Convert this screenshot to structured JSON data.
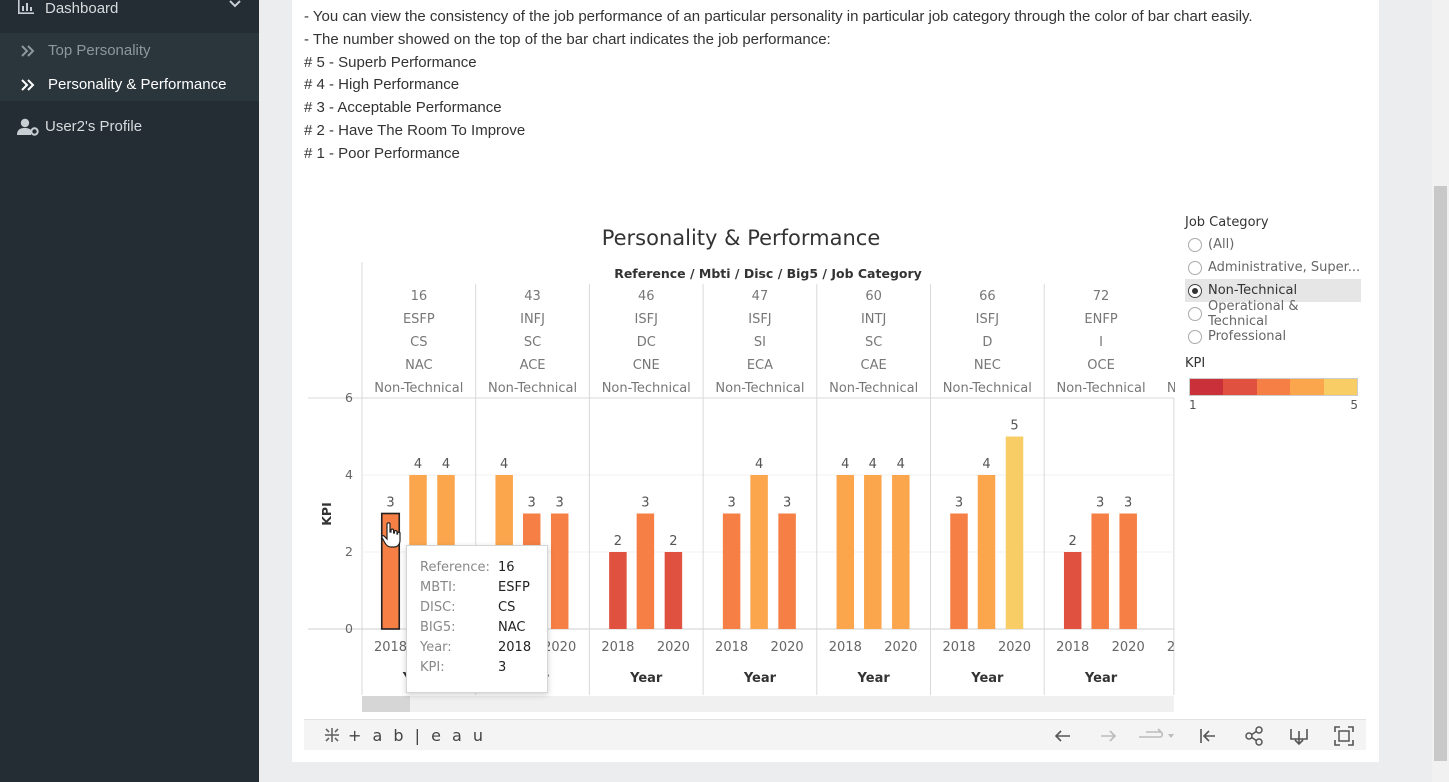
{
  "sidebar": {
    "dashboard_label": "Dashboard",
    "items": [
      {
        "label": "Top Personality"
      },
      {
        "label": "Personality & Performance"
      }
    ],
    "profile_label": "User2's Profile"
  },
  "description": {
    "lines": [
      "- You can view the consistency of the job performance of an particular personality in particular job category through the color of bar chart easily.",
      "- The number showed on the top of the bar chart indicates the job performance:",
      "# 5 - Superb Performance",
      "# 4 - High Performance",
      "# 3 - Acceptable Performance",
      "# 2 - Have The Room To Improve",
      "# 1 - Poor Performance"
    ]
  },
  "filters": {
    "job_category_title": "Job Category",
    "options": [
      "(All)",
      "Administrative, Super...",
      "Non-Technical",
      "Operational & Technical",
      "Professional"
    ],
    "selected": "Non-Technical",
    "kpi_title": "KPI",
    "kpi_min": "1",
    "kpi_max": "5"
  },
  "colors": {
    "kpi_scale": [
      "#c9303a",
      "#e0513f",
      "#f57f45",
      "#fba64d",
      "#f8cd66"
    ],
    "selection_outline": "#222222"
  },
  "chart_data": {
    "type": "bar",
    "title": "Personality & Performance",
    "header_label": "Reference / Mbti / Disc / Big5 / Job Category",
    "ylabel": "KPI",
    "xlabel": "Year",
    "ylim": [
      0,
      6
    ],
    "yticks": [
      "0",
      "2",
      "4",
      "6"
    ],
    "x_tick_first": "2018",
    "x_tick_last": "2020",
    "groups": [
      {
        "reference": "16",
        "mbti": "ESFP",
        "disc": "CS",
        "big5": "NAC",
        "category": "Non-Technical",
        "values": [
          3,
          4,
          4
        ]
      },
      {
        "reference": "43",
        "mbti": "INFJ",
        "disc": "SC",
        "big5": "ACE",
        "category": "Non-Technical",
        "values": [
          4,
          3,
          3
        ]
      },
      {
        "reference": "46",
        "mbti": "ISFJ",
        "disc": "DC",
        "big5": "CNE",
        "category": "Non-Technical",
        "values": [
          2,
          3,
          2
        ]
      },
      {
        "reference": "47",
        "mbti": "ISFJ",
        "disc": "SI",
        "big5": "ECA",
        "category": "Non-Technical",
        "values": [
          3,
          4,
          3
        ]
      },
      {
        "reference": "60",
        "mbti": "INTJ",
        "disc": "SC",
        "big5": "CAE",
        "category": "Non-Technical",
        "values": [
          4,
          4,
          4
        ]
      },
      {
        "reference": "66",
        "mbti": "ISFJ",
        "disc": "D",
        "big5": "NEC",
        "category": "Non-Technical",
        "values": [
          3,
          4,
          5
        ]
      },
      {
        "reference": "72",
        "mbti": "ENFP",
        "disc": "I",
        "big5": "OCE",
        "category": "Non-Technical",
        "values": [
          2,
          3,
          3
        ]
      }
    ],
    "partial_next_group": {
      "category": "N",
      "tick": "2"
    },
    "legend": "right"
  },
  "tooltip": {
    "rows": [
      {
        "key": "Reference:",
        "value": "16"
      },
      {
        "key": "MBTI:",
        "value": "ESFP"
      },
      {
        "key": "DISC:",
        "value": "CS"
      },
      {
        "key": "BIG5:",
        "value": "NAC"
      },
      {
        "key": "Year:",
        "value": "2018"
      },
      {
        "key": "KPI:",
        "value": "3"
      }
    ]
  },
  "toolbar": {
    "logo_text": "+ a b | e a u"
  },
  "icons": {
    "dashboard": "chart-icon",
    "chevron": "chevron-down-icon",
    "arrows": "double-chevron-right-icon",
    "profile": "user-gear-icon"
  }
}
